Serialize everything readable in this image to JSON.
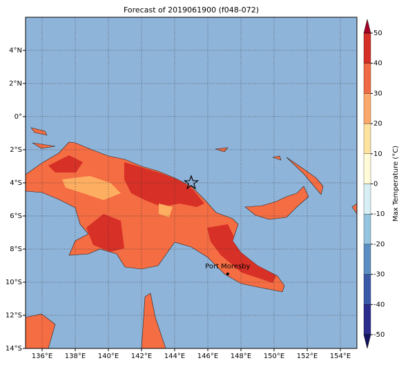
{
  "map": {
    "title": "Forecast of 2019061900 (f048-072)",
    "lonlim": [
      135,
      155
    ],
    "latlim": [
      -14,
      6
    ],
    "grid": true,
    "xticks": [
      {
        "value": 136,
        "label": "136°E"
      },
      {
        "value": 138,
        "label": "138°E"
      },
      {
        "value": 140,
        "label": "140°E"
      },
      {
        "value": 142,
        "label": "142°E"
      },
      {
        "value": 144,
        "label": "144°E"
      },
      {
        "value": 146,
        "label": "146°E"
      },
      {
        "value": 148,
        "label": "148°E"
      },
      {
        "value": 150,
        "label": "150°E"
      },
      {
        "value": 152,
        "label": "152°E"
      },
      {
        "value": 154,
        "label": "154°E"
      }
    ],
    "yticks": [
      {
        "value": 4,
        "label": "4°N"
      },
      {
        "value": 2,
        "label": "2°N"
      },
      {
        "value": 0,
        "label": "0°"
      },
      {
        "value": -2,
        "label": "2°S"
      },
      {
        "value": -4,
        "label": "4°S"
      },
      {
        "value": -6,
        "label": "6°S"
      },
      {
        "value": -8,
        "label": "8°S"
      },
      {
        "value": -10,
        "label": "10°S"
      },
      {
        "value": -12,
        "label": "12°S"
      },
      {
        "value": -14,
        "label": "14°S"
      }
    ],
    "star": {
      "lon": 145,
      "lat": -4
    },
    "city": {
      "label": "Port Moresby",
      "lon": 147.2,
      "lat": -9.5
    }
  },
  "colorbar": {
    "label": "Max Temperature (°C)",
    "lim": [
      -50,
      50
    ],
    "ticks": [
      -50,
      -40,
      -30,
      -20,
      -10,
      0,
      10,
      20,
      30,
      40,
      50
    ],
    "colors": [
      "#2c2c8c",
      "#3a5aa8",
      "#5b8fc3",
      "#94c4df",
      "#d8eef5",
      "#fffbd6",
      "#fde2a0",
      "#fca86a",
      "#f06a45",
      "#d52f27"
    ],
    "under": "#141460",
    "over": "#a50026"
  }
}
